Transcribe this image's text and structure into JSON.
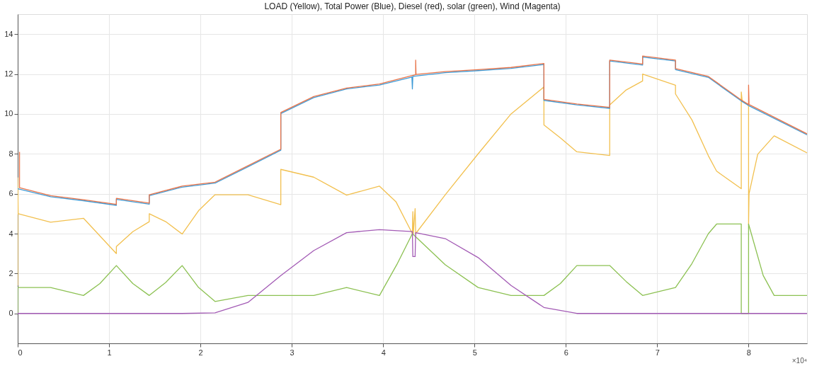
{
  "chart_data": {
    "type": "line",
    "title": "LOAD (Yellow), Total Power (Blue), Diesel (red), solar (green), Wind (Magenta)",
    "xlim": [
      0,
      8.64
    ],
    "xticks": [
      0,
      1,
      2,
      3,
      4,
      5,
      6,
      7,
      8
    ],
    "ylim": [
      -1.5,
      15
    ],
    "yticks": [
      0,
      2,
      4,
      6,
      8,
      10,
      12,
      14
    ],
    "grid": true,
    "legend": false,
    "line_style": "solid",
    "marker": "none",
    "annotations": [
      "×10⁴"
    ],
    "series": [
      {
        "color": "#f2c04f",
        "x": [
          0,
          0,
          0.005,
          0.36,
          0.72,
          1.08,
          1.08,
          1.26,
          1.44,
          1.44,
          1.62,
          1.8,
          1.98,
          2.16,
          2.52,
          2.88,
          2.88,
          3.24,
          3.6,
          3.96,
          4.14,
          4.32,
          4.325,
          4.33,
          4.35,
          4.356,
          4.68,
          5.04,
          5.4,
          5.76,
          5.76,
          5.94,
          6.12,
          6.48,
          6.48,
          6.66,
          6.84,
          6.84,
          7.2,
          7.2,
          7.38,
          7.56,
          7.65,
          7.92,
          7.92,
          7.93,
          8.0,
          8.0,
          8.005,
          8.1,
          8.28,
          8.64
        ],
        "values": [
          1.4,
          6.8,
          5.0,
          4.57,
          4.77,
          3.0,
          3.35,
          4.1,
          4.6,
          5.0,
          4.6,
          3.98,
          5.15,
          5.95,
          5.95,
          5.45,
          7.22,
          6.83,
          5.93,
          6.38,
          5.6,
          4.0,
          5.1,
          4.0,
          5.25,
          4.0,
          5.95,
          8.0,
          10.0,
          11.35,
          9.45,
          8.8,
          8.1,
          7.92,
          10.45,
          11.2,
          11.65,
          12.0,
          11.44,
          11.0,
          9.7,
          7.9,
          7.13,
          6.25,
          11.1,
          10.65,
          10.42,
          4.45,
          6.0,
          7.98,
          8.9,
          8.05
        ]
      },
      {
        "color": "#3d9ad6",
        "x": [
          0,
          0.36,
          0.72,
          1.08,
          1.08,
          1.44,
          1.44,
          1.8,
          2.16,
          2.52,
          2.88,
          2.88,
          3.24,
          3.6,
          3.96,
          4.315,
          4.32,
          4.325,
          4.68,
          5.04,
          5.4,
          5.76,
          5.76,
          6.12,
          6.48,
          6.48,
          6.84,
          6.84,
          7.2,
          7.2,
          7.56,
          7.92,
          8.0,
          8.64
        ],
        "values": [
          6.25,
          5.85,
          5.65,
          5.42,
          5.72,
          5.48,
          5.9,
          6.33,
          6.53,
          7.35,
          8.18,
          10.02,
          10.82,
          11.25,
          11.45,
          11.85,
          11.25,
          11.88,
          12.07,
          12.17,
          12.28,
          12.48,
          10.68,
          10.45,
          10.28,
          12.65,
          12.45,
          12.85,
          12.65,
          12.22,
          11.83,
          10.65,
          10.42,
          8.95
        ]
      },
      {
        "color": "#e8744a",
        "x": [
          0.02,
          0.02,
          0.36,
          0.72,
          1.08,
          1.08,
          1.44,
          1.44,
          1.8,
          2.16,
          2.52,
          2.88,
          2.88,
          3.24,
          3.6,
          3.96,
          4.32,
          4.356,
          4.356,
          4.36,
          4.68,
          5.04,
          5.4,
          5.76,
          5.76,
          6.12,
          6.48,
          6.48,
          6.84,
          6.84,
          7.2,
          7.2,
          7.56,
          7.92,
          8.0,
          8.0,
          8.005,
          8.64
        ],
        "values": [
          8.1,
          6.3,
          5.9,
          5.7,
          5.47,
          5.77,
          5.53,
          5.95,
          6.38,
          6.58,
          7.4,
          8.23,
          10.07,
          10.87,
          11.3,
          11.5,
          11.93,
          11.97,
          12.7,
          11.98,
          12.12,
          12.22,
          12.33,
          12.53,
          10.73,
          10.5,
          10.33,
          12.7,
          12.5,
          12.9,
          12.7,
          12.27,
          11.88,
          10.7,
          10.47,
          11.45,
          10.47,
          9.0
        ]
      },
      {
        "color": "#8cc152",
        "x": [
          0,
          0,
          0.36,
          0.72,
          0.9,
          1.08,
          1.26,
          1.44,
          1.62,
          1.8,
          1.98,
          2.16,
          2.52,
          2.88,
          3.24,
          3.6,
          3.96,
          4.15,
          4.32,
          4.68,
          5.04,
          5.4,
          5.76,
          5.94,
          6.12,
          6.48,
          6.66,
          6.84,
          7.2,
          7.38,
          7.56,
          7.65,
          7.92,
          7.92,
          8.0,
          8.0,
          8.16,
          8.28,
          8.64
        ],
        "values": [
          0,
          1.3,
          1.3,
          0.9,
          1.5,
          2.4,
          1.5,
          0.9,
          1.55,
          2.4,
          1.3,
          0.6,
          0.9,
          0.9,
          0.9,
          1.3,
          0.9,
          2.45,
          4.0,
          2.44,
          1.3,
          0.9,
          0.9,
          1.5,
          2.4,
          2.4,
          1.6,
          0.9,
          1.3,
          2.5,
          4.0,
          4.48,
          4.48,
          0,
          0,
          4.48,
          1.9,
          0.9,
          0.9
        ]
      },
      {
        "color": "#a35bb5",
        "x": [
          0,
          1.8,
          2.16,
          2.52,
          2.88,
          3.24,
          3.6,
          3.96,
          4.32,
          4.325,
          4.35,
          4.356,
          4.68,
          5.04,
          5.4,
          5.76,
          6.12,
          8.64
        ],
        "values": [
          0,
          0,
          0.03,
          0.55,
          1.9,
          3.15,
          4.05,
          4.2,
          4.1,
          2.85,
          2.85,
          4.05,
          3.75,
          2.8,
          1.4,
          0.3,
          0,
          0
        ]
      }
    ]
  }
}
